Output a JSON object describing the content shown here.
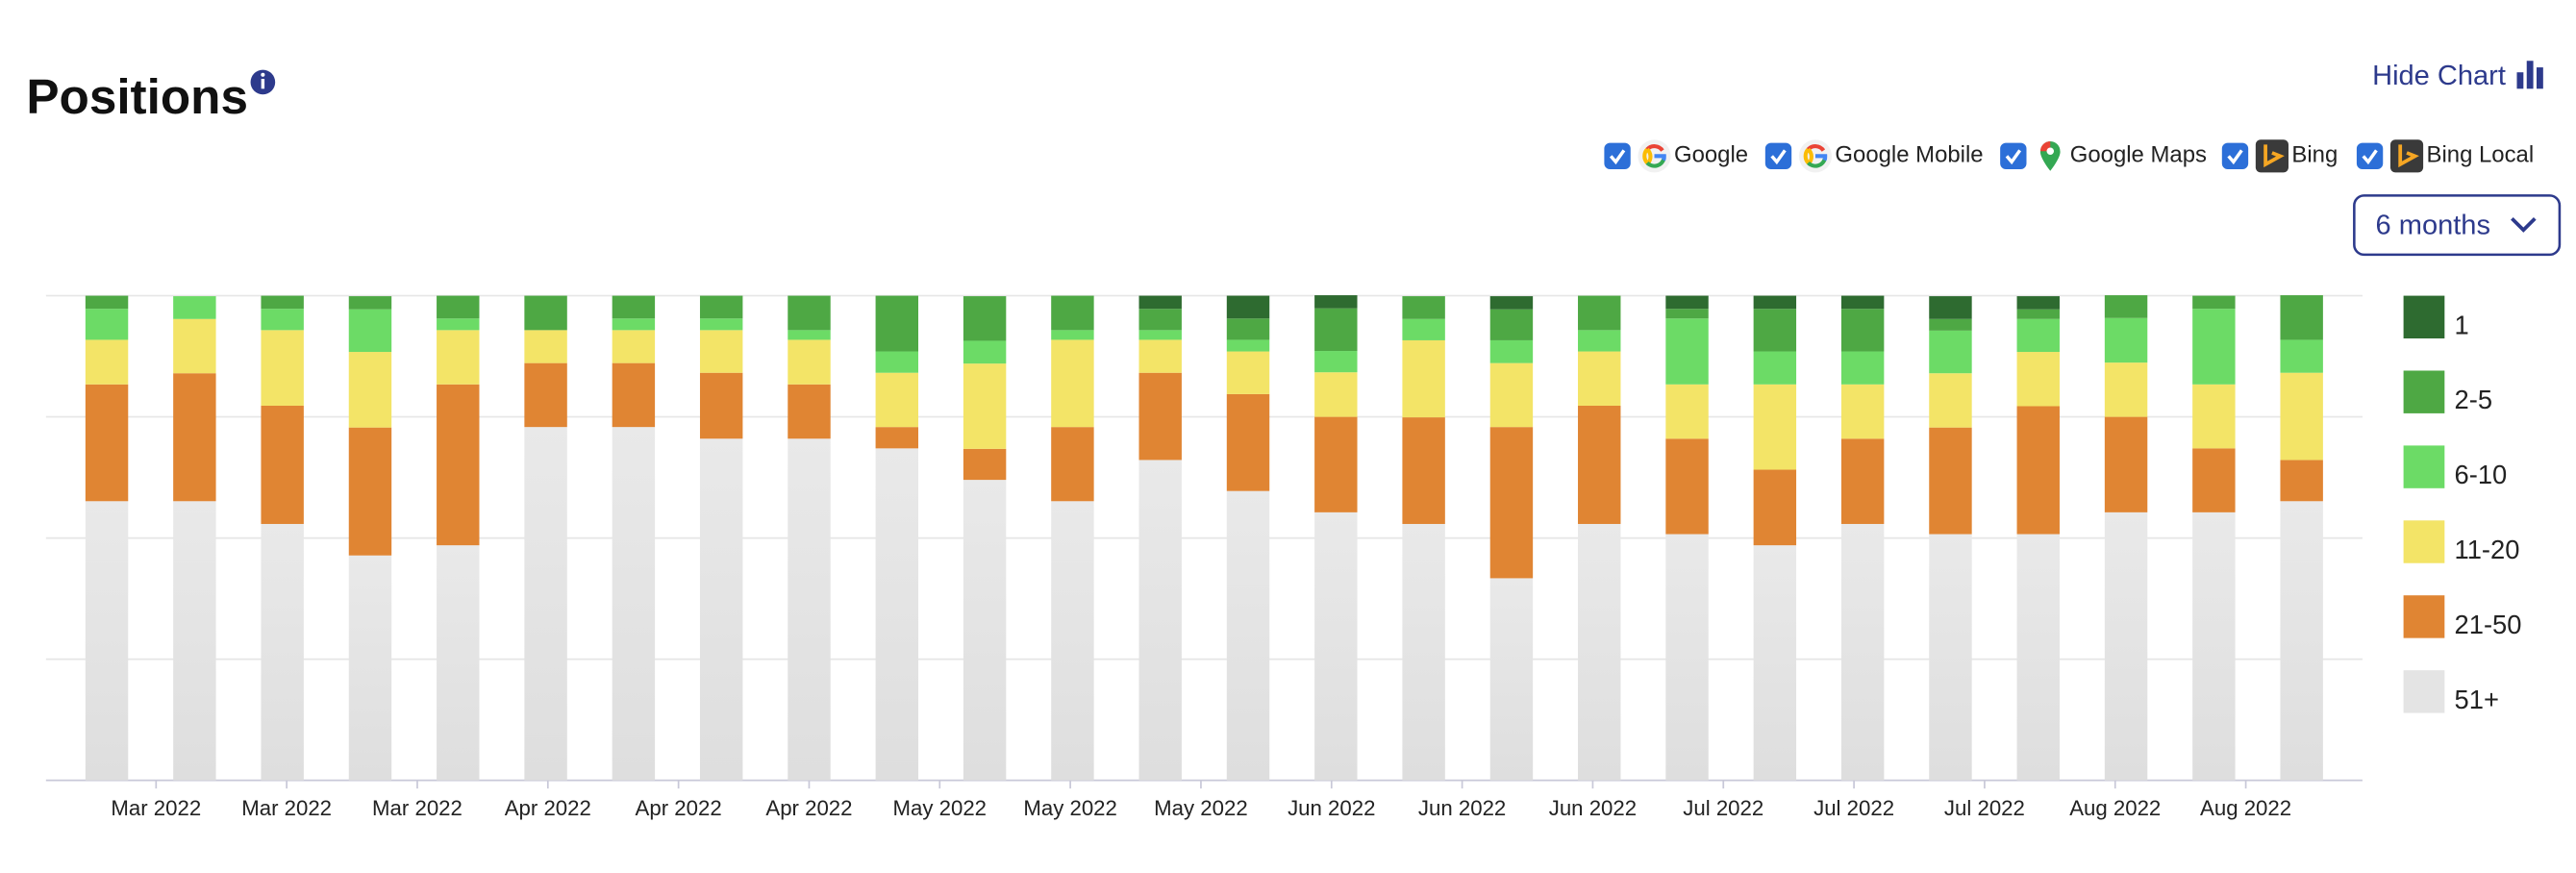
{
  "header": {
    "title": "Positions",
    "hide_chart": "Hide Chart"
  },
  "filters": [
    {
      "label": "Google",
      "checked": true
    },
    {
      "label": "Google Mobile",
      "checked": true
    },
    {
      "label": "Google Maps",
      "checked": true
    },
    {
      "label": "Bing",
      "checked": true
    },
    {
      "label": "Bing Local",
      "checked": true
    }
  ],
  "range": "6 months",
  "chart_data": {
    "type": "stacked_bar",
    "categories": [
      null,
      null,
      null,
      null,
      null,
      null,
      null,
      null,
      null,
      null,
      null,
      null,
      null,
      null,
      null,
      null,
      null,
      null,
      null,
      null,
      null,
      null,
      null,
      null,
      null,
      null
    ],
    "xtick_labels": [
      "Mar 2022",
      "Mar 2022",
      "Mar 2022",
      "Apr 2022",
      "Apr 2022",
      "Apr 2022",
      "May 2022",
      "May 2022",
      "May 2022",
      "Jun 2022",
      "Jun 2022",
      "Jun 2022",
      "Jul 2022",
      "Jul 2022",
      "Jul 2022",
      "Aug 2022",
      "Aug 2022"
    ],
    "ylim": [
      0,
      100
    ],
    "yticks": [
      0,
      25,
      50,
      75,
      100
    ],
    "grid": true,
    "series": [
      {
        "name": "1",
        "color": "#2e6b30",
        "values": [
          0,
          0,
          0,
          0,
          0,
          0,
          0,
          0,
          0,
          0,
          0,
          0,
          2.7,
          4.7,
          2.7,
          0,
          2.7,
          0,
          2.7,
          2.7,
          2.7,
          4.7,
          2.7,
          0,
          0,
          0
        ]
      },
      {
        "name": "2-5",
        "color": "#4ea844",
        "values": [
          2.7,
          0,
          2.7,
          2.7,
          4.7,
          7.1,
          4.7,
          4.7,
          7.1,
          11.5,
          9.2,
          7.1,
          4.4,
          4.4,
          8.8,
          4.7,
          6.4,
          7.1,
          2.0,
          8.8,
          8.8,
          2.4,
          2.0,
          4.7,
          2.7,
          9.2
        ]
      },
      {
        "name": "6-10",
        "color": "#6cdb66",
        "values": [
          6.4,
          4.7,
          4.4,
          8.8,
          2.4,
          0,
          2.4,
          2.4,
          2.0,
          4.4,
          4.7,
          2.0,
          2.0,
          2.4,
          4.4,
          4.4,
          4.7,
          4.4,
          13.6,
          6.8,
          6.8,
          8.8,
          6.8,
          9.2,
          15.6,
          6.8
        ]
      },
      {
        "name": "11-20",
        "color": "#f3e467",
        "values": [
          9.2,
          11.2,
          15.6,
          15.6,
          11.2,
          6.8,
          6.8,
          8.8,
          9.2,
          11.2,
          17.6,
          18.0,
          6.8,
          8.8,
          9.2,
          15.9,
          13.2,
          11.2,
          11.2,
          17.6,
          11.2,
          11.2,
          11.2,
          11.2,
          13.2,
          18.0
        ]
      },
      {
        "name": "21-50",
        "color": "#e08533",
        "values": [
          24.1,
          26.4,
          24.4,
          26.4,
          33.2,
          13.2,
          13.2,
          13.6,
          11.2,
          4.4,
          6.4,
          15.3,
          18.0,
          20.0,
          19.7,
          22.0,
          31.2,
          24.4,
          19.7,
          15.6,
          17.6,
          22.0,
          26.4,
          19.7,
          13.2,
          8.5
        ]
      },
      {
        "name": "51+",
        "color": "#e4e4e4",
        "values": [
          57.6,
          57.6,
          52.9,
          46.4,
          48.5,
          72.9,
          72.9,
          70.5,
          70.5,
          68.5,
          62.0,
          57.6,
          66.1,
          59.7,
          55.3,
          52.9,
          41.7,
          52.9,
          50.8,
          48.5,
          52.9,
          50.8,
          50.8,
          55.3,
          55.3,
          57.6
        ]
      }
    ]
  }
}
